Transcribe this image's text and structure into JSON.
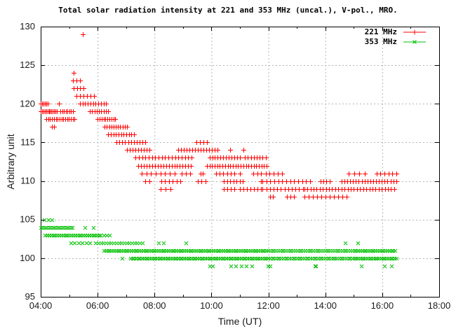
{
  "chart_data": {
    "type": "scatter",
    "title": "Total solar radiation intensity at 221 and 353 MHz (uncal.), V-pol., MRO.",
    "xlabel": "Time (UT)",
    "ylabel": "Arbitrary unit",
    "xlim_hours": [
      4,
      18
    ],
    "ylim": [
      95,
      130
    ],
    "xticks": [
      {
        "h": 4,
        "label": "04:00"
      },
      {
        "h": 6,
        "label": "06:00"
      },
      {
        "h": 8,
        "label": "08:00"
      },
      {
        "h": 10,
        "label": "10:00"
      },
      {
        "h": 12,
        "label": "12:00"
      },
      {
        "h": 14,
        "label": "14:00"
      },
      {
        "h": 16,
        "label": "16:00"
      },
      {
        "h": 18,
        "label": "18:00"
      }
    ],
    "xticks_minor_hours": [
      5,
      7,
      9,
      11,
      13,
      15,
      17
    ],
    "yticks": [
      95,
      100,
      105,
      110,
      115,
      120,
      125,
      130
    ],
    "grid": {
      "x_hours": [
        6,
        8,
        10,
        12,
        14,
        16
      ],
      "y_values": [
        100,
        105,
        110,
        115,
        120,
        125
      ],
      "color": "#b4b4b4"
    },
    "legend_position": "top-right-inside",
    "axis_color": "#000000",
    "background": "#ffffff",
    "series": [
      {
        "name": "221 MHz",
        "marker": "plus",
        "color": "#ff0000",
        "segments_format": "[startHour, endHour, value, pointCount]",
        "segments": [
          [
            4.0,
            4.25,
            120,
            6
          ],
          [
            4.0,
            4.57,
            119,
            13
          ],
          [
            4.2,
            5.19,
            118,
            16
          ],
          [
            4.4,
            4.47,
            117,
            2
          ],
          [
            4.64,
            4.64,
            120,
            1
          ],
          [
            4.7,
            5.13,
            119,
            8
          ],
          [
            5.13,
            5.38,
            123,
            3
          ],
          [
            5.17,
            5.17,
            124,
            1
          ],
          [
            5.17,
            5.5,
            122,
            4
          ],
          [
            5.25,
            5.88,
            121,
            6
          ],
          [
            5.49,
            5.49,
            129,
            1
          ],
          [
            5.38,
            6.3,
            120,
            11
          ],
          [
            5.73,
            6.37,
            119,
            9
          ],
          [
            6.0,
            6.62,
            118,
            10
          ],
          [
            6.25,
            7.03,
            117,
            11
          ],
          [
            6.37,
            7.28,
            116,
            11
          ],
          [
            6.67,
            7.67,
            115,
            11
          ],
          [
            7.03,
            7.83,
            114,
            9
          ],
          [
            7.33,
            9.3,
            113,
            18
          ],
          [
            7.43,
            9.28,
            112,
            20
          ],
          [
            7.55,
            8.7,
            111,
            8
          ],
          [
            7.67,
            7.83,
            110,
            2
          ],
          [
            8.24,
            8.91,
            110,
            6
          ],
          [
            8.22,
            8.57,
            109,
            3
          ],
          [
            8.82,
            10.2,
            114,
            15
          ],
          [
            10.65,
            10.65,
            114,
            1
          ],
          [
            11.12,
            11.12,
            114,
            1
          ],
          [
            9.47,
            9.84,
            115,
            4
          ],
          [
            9.93,
            11.0,
            113,
            12
          ],
          [
            11.18,
            11.9,
            113,
            8
          ],
          [
            9.84,
            11.94,
            112,
            24
          ],
          [
            8.96,
            9.26,
            111,
            3
          ],
          [
            9.63,
            9.7,
            111,
            2
          ],
          [
            10.17,
            10.67,
            111,
            5
          ],
          [
            10.81,
            10.99,
            111,
            2
          ],
          [
            11.48,
            11.73,
            111,
            3
          ],
          [
            11.9,
            12.47,
            111,
            5
          ],
          [
            9.51,
            9.8,
            110,
            3
          ],
          [
            10.44,
            11.11,
            110,
            7
          ],
          [
            11.73,
            11.8,
            110,
            2
          ],
          [
            11.93,
            13.46,
            110,
            12
          ],
          [
            13.83,
            14.15,
            110,
            4
          ],
          [
            14.57,
            16.49,
            110,
            20
          ],
          [
            10.44,
            10.81,
            109,
            4
          ],
          [
            10.99,
            11.73,
            109,
            7
          ],
          [
            11.8,
            13.21,
            109,
            12
          ],
          [
            13.26,
            16.42,
            109,
            30
          ],
          [
            12.05,
            12.15,
            108,
            2
          ],
          [
            12.64,
            12.89,
            108,
            3
          ],
          [
            13.26,
            14.74,
            108,
            11
          ],
          [
            14.81,
            15.01,
            111,
            2
          ],
          [
            15.19,
            15.38,
            111,
            2
          ],
          [
            15.8,
            16.49,
            111,
            6
          ]
        ]
      },
      {
        "name": "353 MHz",
        "marker": "cross",
        "color": "#00c000",
        "segments_format": "[startHour, endHour, value, pointCount]",
        "segments": [
          [
            4.12,
            4.4,
            105,
            3
          ],
          [
            4.0,
            5.11,
            104,
            20
          ],
          [
            5.56,
            5.56,
            104,
            1
          ],
          [
            5.85,
            5.85,
            104,
            1
          ],
          [
            4.15,
            6.05,
            103,
            28
          ],
          [
            6.1,
            6.42,
            103,
            4
          ],
          [
            5.06,
            5.73,
            102,
            6
          ],
          [
            5.93,
            7.48,
            102,
            18
          ],
          [
            7.58,
            7.58,
            102,
            1
          ],
          [
            8.15,
            8.32,
            102,
            2
          ],
          [
            9.09,
            9.09,
            102,
            1
          ],
          [
            14.69,
            14.69,
            102,
            1
          ],
          [
            15.14,
            15.14,
            102,
            1
          ],
          [
            6.22,
            16.45,
            101,
            150
          ],
          [
            6.86,
            6.86,
            100,
            1
          ],
          [
            7.15,
            16.49,
            100,
            140
          ],
          [
            9.93,
            10.05,
            99,
            2
          ],
          [
            10.67,
            11.41,
            99,
            5
          ],
          [
            11.98,
            12.05,
            99,
            2
          ],
          [
            13.63,
            13.66,
            99,
            2
          ],
          [
            15.26,
            15.26,
            99,
            1
          ],
          [
            16.08,
            16.33,
            99,
            2
          ]
        ]
      }
    ]
  }
}
